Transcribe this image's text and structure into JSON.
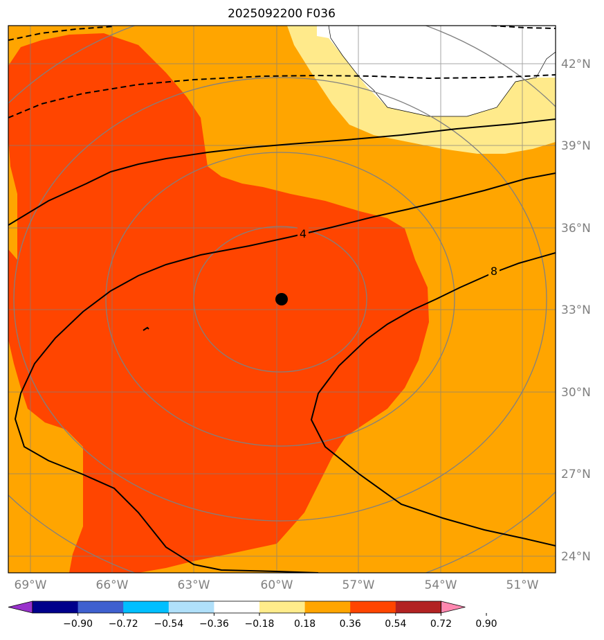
{
  "title": "2025092200 F036",
  "longitude_labels": [
    "69°W",
    "66°W",
    "63°W",
    "60°W",
    "57°W",
    "54°W",
    "51°W"
  ],
  "latitude_labels": [
    "42°N",
    "39°N",
    "36°N",
    "33°N",
    "30°N",
    "27°N",
    "24°N"
  ],
  "colorbar": {
    "ticks": [
      "−0.90",
      "−0.72",
      "−0.54",
      "−0.36",
      "−0.18",
      "0.18",
      "0.36",
      "0.54",
      "0.72",
      "0.90"
    ],
    "colors": [
      "#9932cc",
      "#00008b",
      "#3f60cf",
      "#00bfff",
      "#b0e0fa",
      "#ffffff",
      "#ffec8b",
      "#ffa500",
      "#ff4500",
      "#b22222",
      "#ff88b0"
    ]
  },
  "contour_labels": [
    "4",
    "8"
  ],
  "fill_colors": {
    "orange": "#ffa500",
    "red_orange": "#ff4500",
    "light_yellow": "#ffea8b",
    "white": "#ffffff"
  },
  "storm_center_marker": "black-dot"
}
